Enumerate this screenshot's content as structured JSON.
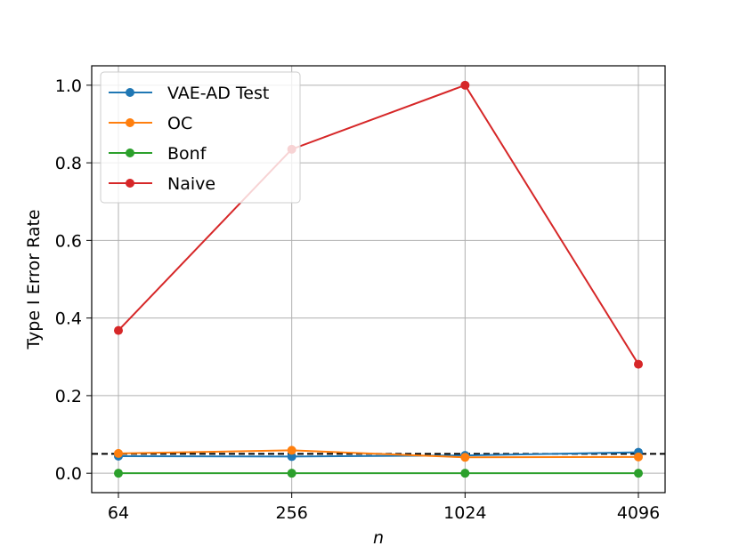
{
  "chart_data": {
    "type": "line",
    "title": "",
    "xlabel": "n",
    "ylabel": "Type I Error Rate",
    "categories": [
      "64",
      "256",
      "1024",
      "4096"
    ],
    "ylim": [
      -0.05,
      1.05
    ],
    "yticks": [
      "0.0",
      "0.2",
      "0.4",
      "0.6",
      "0.8",
      "1.0"
    ],
    "grid": true,
    "legend_position": "top-left",
    "reference_line": {
      "y": 0.05,
      "style": "dashed",
      "color": "#000000"
    },
    "series": [
      {
        "name": "VAE-AD Test",
        "color": "#1f77b4",
        "values": [
          0.044,
          0.043,
          0.046,
          0.054
        ]
      },
      {
        "name": "OC",
        "color": "#ff7f0e",
        "values": [
          0.051,
          0.059,
          0.041,
          0.042
        ]
      },
      {
        "name": "Bonf",
        "color": "#2ca02c",
        "values": [
          0.0,
          0.0,
          0.0,
          0.0
        ]
      },
      {
        "name": "Naive",
        "color": "#d62728",
        "values": [
          0.368,
          0.835,
          1.0,
          0.281
        ]
      }
    ]
  }
}
